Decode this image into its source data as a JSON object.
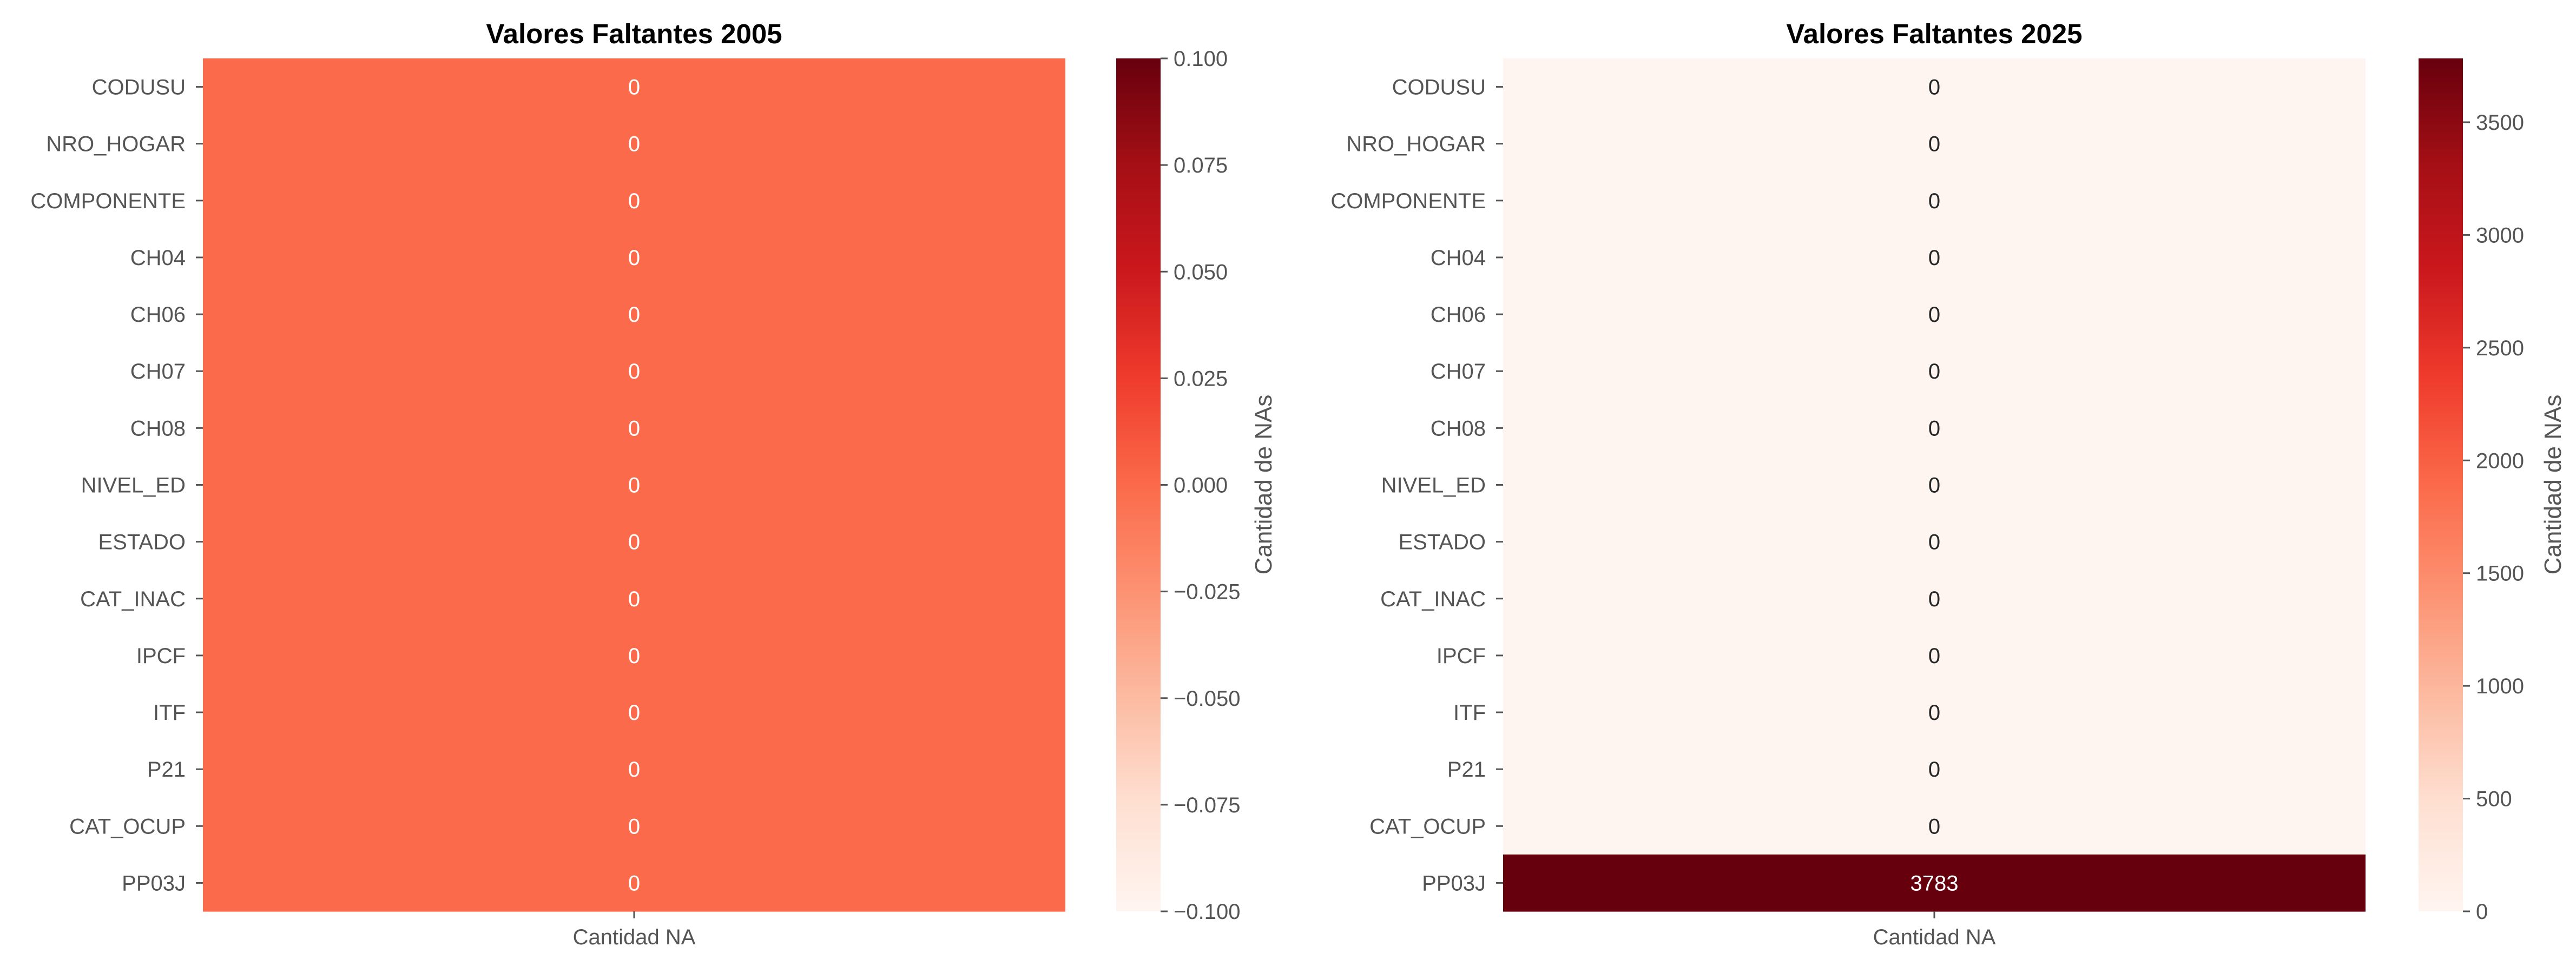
{
  "chart_data": [
    {
      "type": "heatmap",
      "title": "Valores Faltantes 2005",
      "xlabel": "",
      "ylabel": "",
      "column_label": "Cantidad NA",
      "rows": [
        "CODUSU",
        "NRO_HOGAR",
        "COMPONENTE",
        "CH04",
        "CH06",
        "CH07",
        "CH08",
        "NIVEL_ED",
        "ESTADO",
        "CAT_INAC",
        "IPCF",
        "ITF",
        "P21",
        "CAT_OCUP",
        "PP03J"
      ],
      "values": [
        0,
        0,
        0,
        0,
        0,
        0,
        0,
        0,
        0,
        0,
        0,
        0,
        0,
        0,
        0
      ],
      "colorbar": {
        "label": "Cantidad de NAs",
        "range": [
          -0.1,
          0.1
        ],
        "ticks": [
          "0.100",
          "0.075",
          "0.050",
          "0.025",
          "0.000",
          "−0.025",
          "−0.050",
          "−0.075",
          "−0.100"
        ],
        "tick_values": [
          0.1,
          0.075,
          0.05,
          0.025,
          0.0,
          -0.025,
          -0.05,
          -0.075,
          -0.1
        ]
      },
      "colormap": "Reds"
    },
    {
      "type": "heatmap",
      "title": "Valores Faltantes 2025",
      "xlabel": "",
      "ylabel": "",
      "column_label": "Cantidad NA",
      "rows": [
        "CODUSU",
        "NRO_HOGAR",
        "COMPONENTE",
        "CH04",
        "CH06",
        "CH07",
        "CH08",
        "NIVEL_ED",
        "ESTADO",
        "CAT_INAC",
        "IPCF",
        "ITF",
        "P21",
        "CAT_OCUP",
        "PP03J"
      ],
      "values": [
        0,
        0,
        0,
        0,
        0,
        0,
        0,
        0,
        0,
        0,
        0,
        0,
        0,
        0,
        3783
      ],
      "colorbar": {
        "label": "Cantidad de NAs",
        "range": [
          0,
          3783
        ],
        "ticks": [
          "3500",
          "3000",
          "2500",
          "2000",
          "1500",
          "1000",
          "500",
          "0"
        ],
        "tick_values": [
          3500,
          3000,
          2500,
          2000,
          1500,
          1000,
          500,
          0
        ]
      },
      "colormap": "Reds"
    }
  ]
}
